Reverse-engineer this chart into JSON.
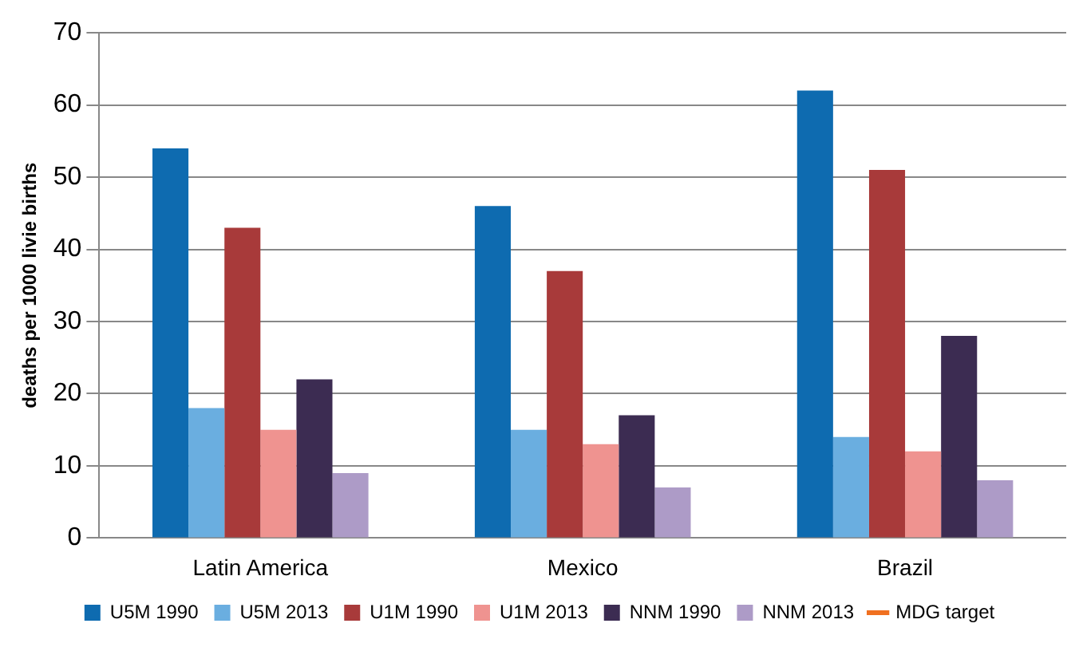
{
  "chart_data": {
    "type": "bar",
    "ylabel": "deaths per 1000 livie births",
    "categories": [
      "Latin America",
      "Mexico",
      "Brazil"
    ],
    "series": [
      {
        "name": "U5M 1990",
        "color": "#0e6bb0",
        "values": [
          54,
          46,
          62
        ]
      },
      {
        "name": "U5M 2013",
        "color": "#6aaee0",
        "values": [
          18,
          15,
          14
        ]
      },
      {
        "name": "U1M 1990",
        "color": "#a83a3a",
        "values": [
          43,
          37,
          51
        ]
      },
      {
        "name": "U1M 2013",
        "color": "#ef9390",
        "values": [
          15,
          13,
          12
        ]
      },
      {
        "name": "NNM 1990",
        "color": "#3c2c52",
        "values": [
          22,
          17,
          28
        ]
      },
      {
        "name": "NNM 2013",
        "color": "#ad9bc7",
        "values": [
          9,
          7,
          8
        ]
      },
      {
        "name": "MDG target",
        "color": "#f07020",
        "type": "line",
        "values": [
          null,
          null,
          null
        ]
      }
    ],
    "ylim": [
      0,
      70
    ],
    "yticks": [
      0,
      10,
      20,
      30,
      40,
      50,
      60,
      70
    ],
    "grid": "y",
    "legend": "bottom"
  }
}
